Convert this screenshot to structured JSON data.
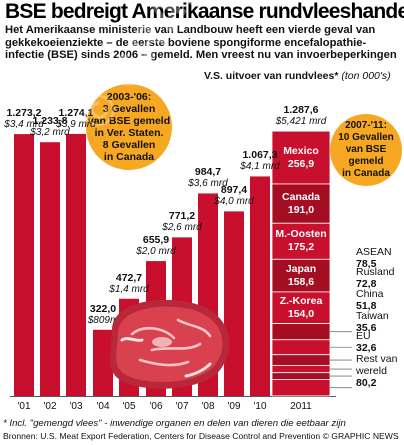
{
  "title": "BSE bedreigt Amerikaanse rundvleeshandel",
  "subtitle": "Het Amerikaanse ministerie van Landbouw heeft een vierde geval van gekkekoeienziekte – de eerste boviene spongiforme encefalopathie-infectie (BSE) sinds 2006 – gemeld. Men vreest nu van invoerbeperkingen",
  "legend": {
    "series_label": "V.S. uitvoer van rundvlees*",
    "unit": "(ton 000's)"
  },
  "callouts": {
    "left": [
      "2003-'06:",
      "3 Gevallen",
      "van BSE gemeld",
      "in Ver. Staten.",
      "8 Gevallen",
      "in Canada"
    ],
    "right": [
      "2007-'11:",
      "10 Gevallen",
      "van BSE",
      "gemeld",
      "in Canada"
    ]
  },
  "chart_data": {
    "type": "bar",
    "categories": [
      "'01",
      "'02",
      "'03",
      "'04",
      "'05",
      "'06",
      "'07",
      "'08",
      "'09",
      "'10",
      "2011"
    ],
    "values": [
      1273.2,
      1233.8,
      1274.1,
      322.0,
      472.7,
      655.9,
      771.2,
      984.7,
      897.4,
      1067.3,
      1287.6
    ],
    "value_labels": [
      "1.273,2",
      "1.233,8",
      "1.274,1",
      "322,0",
      "472,7",
      "655,9",
      "771,2",
      "984,7",
      "897,4",
      "1.067,3",
      "1.287,6"
    ],
    "dollar_labels": [
      "$3,4 mrd",
      "$3,2 mrd",
      "$3,9 mrd",
      "$809m",
      "$1,4 mrd",
      "$2,0 mrd",
      "$2,6 mrd",
      "$3,6 mrd",
      "$4,0 mrd",
      "$4,1 mrd",
      "$5,421 mrd"
    ],
    "ylim": [
      0,
      1400
    ],
    "grid": false,
    "stacked_2011": [
      {
        "name": "Mexico",
        "value": 256.9,
        "label": "256,9"
      },
      {
        "name": "Canada",
        "value": 191.0,
        "label": "191,0"
      },
      {
        "name": "M.-Oosten",
        "value": 175.2,
        "label": "175,2"
      },
      {
        "name": "Japan",
        "value": 158.6,
        "label": "158,6"
      },
      {
        "name": "Z.-Korea",
        "value": 154.0,
        "label": "154,0"
      },
      {
        "name": "ASEAN",
        "value": 78.5,
        "label": "78,5"
      },
      {
        "name": "Rusland",
        "value": 72.8,
        "label": "72,8"
      },
      {
        "name": "China",
        "value": 51.8,
        "label": "51,8"
      },
      {
        "name": "Taiwan",
        "value": 35.6,
        "label": "35,6"
      },
      {
        "name": "EU",
        "value": 32.6,
        "label": "32,6"
      },
      {
        "name": "Rest van wereld",
        "value": 80.2,
        "label": "80,2"
      }
    ]
  },
  "footnote": "* Incl. \"gemengd vlees\" - inwendige organen en delen van dieren die eetbaar zijn",
  "source": "Bronnen: U.S. Meat Export Federation, Centers for Disease Control and Prevention © GRAPHIC NEWS",
  "watermark": "© GRAPHIC NEWS",
  "colors": {
    "bar": "#c8102e",
    "bar_dark": "#a50d22",
    "bubble": "#f7a823",
    "meat": "#d9414f"
  }
}
